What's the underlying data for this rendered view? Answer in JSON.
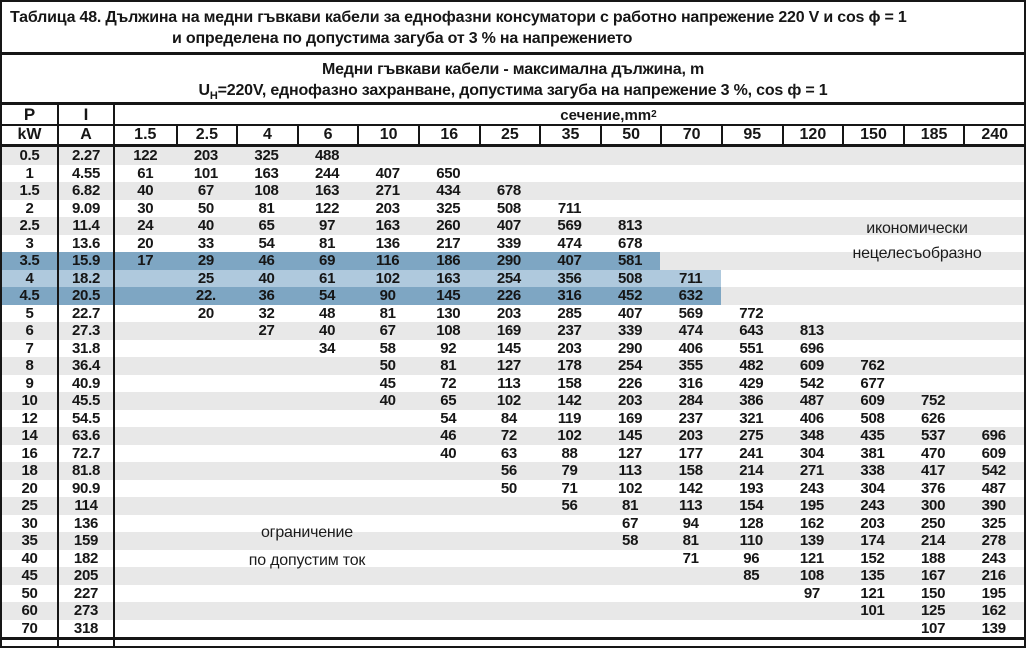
{
  "title": {
    "line1": "Таблица 48. Дължина на медни гъвкави кабели за еднофазни консуматори с работно напрежение 220 V и cos ϕ = 1",
    "line2": "и определена по допустима загуба от 3 % на напрежението"
  },
  "subtitle": {
    "line1": "Медни гъвкави кабели - максимална дължина, m",
    "u_base": "U",
    "u_sub": "Н",
    "line2_rest": "=220V, еднофазно захранване, допустима загуба на напрежение 3 %, cos ф = 1"
  },
  "annotations": {
    "uneconomical_line1": "икономически",
    "uneconomical_line2": "нецелесъобразно",
    "limit_line1": "ограничение",
    "limit_line2": "по допустим ток"
  },
  "colors": {
    "highlight_dark": "#7ea6c3",
    "highlight_light": "#afc9dd",
    "stripe": "#e8e8e8",
    "border": "#161616"
  },
  "table": {
    "col_p_label": "P",
    "col_p_unit": "kW",
    "col_i_label": "I",
    "col_i_unit": "A",
    "section_header_label": "сечение,mm",
    "section_header_sup": "2",
    "section_headers": [
      "1.5",
      "2.5",
      "4",
      "6",
      "10",
      "16",
      "25",
      "35",
      "50",
      "70",
      "95",
      "120",
      "150",
      "185",
      "240"
    ],
    "rows": [
      {
        "p": "0.5",
        "i": "2.27",
        "values": [
          "122",
          "203",
          "325",
          "488",
          "",
          "",
          "",
          "",
          "",
          "",
          "",
          "",
          "",
          "",
          ""
        ]
      },
      {
        "p": "1",
        "i": "4.55",
        "values": [
          "61",
          "101",
          "163",
          "244",
          "407",
          "650",
          "",
          "",
          "",
          "",
          "",
          "",
          "",
          "",
          ""
        ]
      },
      {
        "p": "1.5",
        "i": "6.82",
        "values": [
          "40",
          "67",
          "108",
          "163",
          "271",
          "434",
          "678",
          "",
          "",
          "",
          "",
          "",
          "",
          "",
          ""
        ]
      },
      {
        "p": "2",
        "i": "9.09",
        "values": [
          "30",
          "50",
          "81",
          "122",
          "203",
          "325",
          "508",
          "711",
          "",
          "",
          "",
          "",
          "",
          "",
          ""
        ]
      },
      {
        "p": "2.5",
        "i": "11.4",
        "values": [
          "24",
          "40",
          "65",
          "97",
          "163",
          "260",
          "407",
          "569",
          "813",
          "",
          "",
          "",
          "",
          "",
          ""
        ]
      },
      {
        "p": "3",
        "i": "13.6",
        "values": [
          "20",
          "33",
          "54",
          "81",
          "136",
          "217",
          "339",
          "474",
          "678",
          "",
          "",
          "",
          "",
          "",
          ""
        ]
      },
      {
        "p": "3.5",
        "i": "15.9",
        "values": [
          "17",
          "29",
          "46",
          "69",
          "116",
          "186",
          "290",
          "407",
          "581",
          "",
          "",
          "",
          "",
          "",
          ""
        ],
        "highlight": {
          "shade": "dark",
          "last_col": 8
        }
      },
      {
        "p": "4",
        "i": "18.2",
        "values": [
          "",
          "25",
          "40",
          "61",
          "102",
          "163",
          "254",
          "356",
          "508",
          "711",
          "",
          "",
          "",
          "",
          ""
        ],
        "highlight": {
          "shade": "light",
          "last_col": 9
        }
      },
      {
        "p": "4.5",
        "i": "20.5",
        "values": [
          "",
          "22.",
          "36",
          "54",
          "90",
          "145",
          "226",
          "316",
          "452",
          "632",
          "",
          "",
          "",
          "",
          ""
        ],
        "highlight": {
          "shade": "dark",
          "last_col": 9
        }
      },
      {
        "p": "5",
        "i": "22.7",
        "values": [
          "",
          "20",
          "32",
          "48",
          "81",
          "130",
          "203",
          "285",
          "407",
          "569",
          "772",
          "",
          "",
          "",
          ""
        ]
      },
      {
        "p": "6",
        "i": "27.3",
        "values": [
          "",
          "",
          "27",
          "40",
          "67",
          "108",
          "169",
          "237",
          "339",
          "474",
          "643",
          "813",
          "",
          "",
          ""
        ]
      },
      {
        "p": "7",
        "i": "31.8",
        "values": [
          "",
          "",
          "",
          "34",
          "58",
          "92",
          "145",
          "203",
          "290",
          "406",
          "551",
          "696",
          "",
          "",
          ""
        ]
      },
      {
        "p": "8",
        "i": "36.4",
        "values": [
          "",
          "",
          "",
          "",
          "50",
          "81",
          "127",
          "178",
          "254",
          "355",
          "482",
          "609",
          "762",
          "",
          ""
        ]
      },
      {
        "p": "9",
        "i": "40.9",
        "values": [
          "",
          "",
          "",
          "",
          "45",
          "72",
          "113",
          "158",
          "226",
          "316",
          "429",
          "542",
          "677",
          "",
          ""
        ]
      },
      {
        "p": "10",
        "i": "45.5",
        "values": [
          "",
          "",
          "",
          "",
          "40",
          "65",
          "102",
          "142",
          "203",
          "284",
          "386",
          "487",
          "609",
          "752",
          ""
        ]
      },
      {
        "p": "12",
        "i": "54.5",
        "values": [
          "",
          "",
          "",
          "",
          "",
          "54",
          "84",
          "119",
          "169",
          "237",
          "321",
          "406",
          "508",
          "626",
          ""
        ]
      },
      {
        "p": "14",
        "i": "63.6",
        "values": [
          "",
          "",
          "",
          "",
          "",
          "46",
          "72",
          "102",
          "145",
          "203",
          "275",
          "348",
          "435",
          "537",
          "696"
        ]
      },
      {
        "p": "16",
        "i": "72.7",
        "values": [
          "",
          "",
          "",
          "",
          "",
          "40",
          "63",
          "88",
          "127",
          "177",
          "241",
          "304",
          "381",
          "470",
          "609"
        ]
      },
      {
        "p": "18",
        "i": "81.8",
        "values": [
          "",
          "",
          "",
          "",
          "",
          "",
          "56",
          "79",
          "113",
          "158",
          "214",
          "271",
          "338",
          "417",
          "542"
        ]
      },
      {
        "p": "20",
        "i": "90.9",
        "values": [
          "",
          "",
          "",
          "",
          "",
          "",
          "50",
          "71",
          "102",
          "142",
          "193",
          "243",
          "304",
          "376",
          "487"
        ]
      },
      {
        "p": "25",
        "i": "114",
        "values": [
          "",
          "",
          "",
          "",
          "",
          "",
          "",
          "56",
          "81",
          "113",
          "154",
          "195",
          "243",
          "300",
          "390"
        ]
      },
      {
        "p": "30",
        "i": "136",
        "values": [
          "",
          "",
          "",
          "",
          "",
          "",
          "",
          "",
          "67",
          "94",
          "128",
          "162",
          "203",
          "250",
          "325"
        ]
      },
      {
        "p": "35",
        "i": "159",
        "values": [
          "",
          "",
          "",
          "",
          "",
          "",
          "",
          "",
          "58",
          "81",
          "110",
          "139",
          "174",
          "214",
          "278"
        ]
      },
      {
        "p": "40",
        "i": "182",
        "values": [
          "",
          "",
          "",
          "",
          "",
          "",
          "",
          "",
          "",
          "71",
          "96",
          "121",
          "152",
          "188",
          "243"
        ]
      },
      {
        "p": "45",
        "i": "205",
        "values": [
          "",
          "",
          "",
          "",
          "",
          "",
          "",
          "",
          "",
          "",
          "85",
          "108",
          "135",
          "167",
          "216"
        ]
      },
      {
        "p": "50",
        "i": "227",
        "values": [
          "",
          "",
          "",
          "",
          "",
          "",
          "",
          "",
          "",
          "",
          "",
          "97",
          "121",
          "150",
          "195"
        ]
      },
      {
        "p": "60",
        "i": "273",
        "values": [
          "",
          "",
          "",
          "",
          "",
          "",
          "",
          "",
          "",
          "",
          "",
          "",
          "101",
          "125",
          "162"
        ]
      },
      {
        "p": "70",
        "i": "318",
        "values": [
          "",
          "",
          "",
          "",
          "",
          "",
          "",
          "",
          "",
          "",
          "",
          "",
          "",
          "107",
          "139"
        ]
      }
    ]
  }
}
